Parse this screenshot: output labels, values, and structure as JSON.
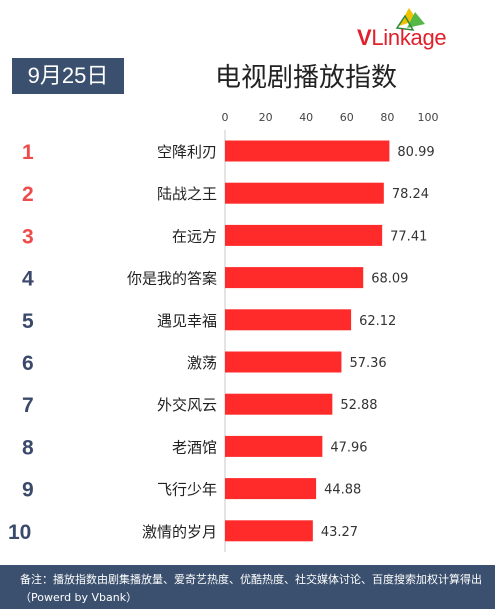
{
  "logo": {
    "text_v": "V",
    "text_rest": "Linkage"
  },
  "date": "9月25日",
  "title": "电视剧播放指数",
  "footnote": "备注：播放指数由剧集播放量、爱奇艺热度、优酷热度、社交媒体讨论、百度搜索加权计算得出（Powerd by Vbank）",
  "colors": {
    "bar": "#ff2b2b",
    "rank_top": "#ee4b4b",
    "rank_other": "#3b4a6b",
    "badge_bg": "#3b506e",
    "axis": "#c8c8c8"
  },
  "chart_data": {
    "type": "bar",
    "orientation": "horizontal",
    "title": "电视剧播放指数",
    "xlim": [
      0,
      100
    ],
    "x_ticks": [
      0,
      20,
      40,
      60,
      80,
      100
    ],
    "ranks": [
      "1",
      "2",
      "3",
      "4",
      "5",
      "6",
      "7",
      "8",
      "9",
      "10"
    ],
    "categories": [
      "空降利刃",
      "陆战之王",
      "在远方",
      "你是我的答案",
      "遇见幸福",
      "激荡",
      "外交风云",
      "老酒馆",
      "飞行少年",
      "激情的岁月"
    ],
    "values": [
      80.99,
      78.24,
      77.41,
      68.09,
      62.12,
      57.36,
      52.88,
      47.96,
      44.88,
      43.27
    ],
    "value_labels": [
      "80.99",
      "78.24",
      "77.41",
      "68.09",
      "62.12",
      "57.36",
      "52.88",
      "47.96",
      "44.88",
      "43.27"
    ]
  }
}
